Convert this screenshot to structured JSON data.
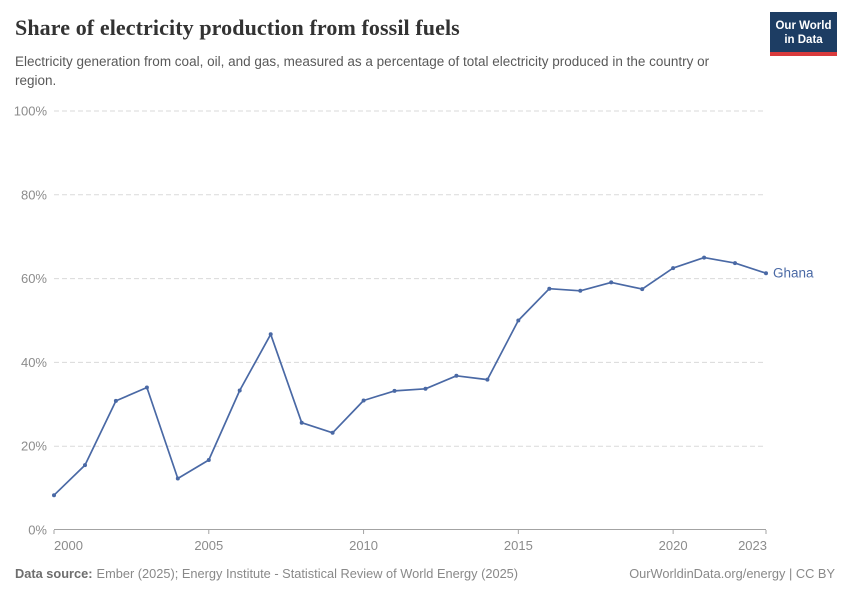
{
  "header": {
    "title": "Share of electricity production from fossil fuels",
    "subtitle": "Electricity generation from coal, oil, and gas, measured as a percentage of total electricity produced in the country or region.",
    "logo": {
      "line1": "Our World",
      "line2": "in Data",
      "bg_color": "#1d3d63",
      "bar_color": "#d93a3c"
    }
  },
  "chart_data": {
    "type": "line",
    "title": "Share of electricity production from fossil fuels",
    "xlabel": "",
    "ylabel": "",
    "xlim": [
      2000,
      2023
    ],
    "ylim": [
      0,
      100
    ],
    "x_ticks": [
      2000,
      2005,
      2010,
      2015,
      2020,
      2023
    ],
    "y_ticks": [
      0,
      20,
      40,
      60,
      80,
      100
    ],
    "y_tick_suffix": "%",
    "grid": "horizontal-dashed",
    "legend_position": "end-of-line-label",
    "series": [
      {
        "name": "Ghana",
        "color": "#4a69a5",
        "x": [
          2000,
          2001,
          2002,
          2003,
          2004,
          2005,
          2006,
          2007,
          2008,
          2009,
          2010,
          2011,
          2012,
          2013,
          2014,
          2015,
          2016,
          2017,
          2018,
          2019,
          2020,
          2021,
          2022,
          2023
        ],
        "values": [
          8.3,
          15.5,
          30.8,
          34.0,
          12.3,
          16.7,
          33.3,
          46.7,
          25.6,
          23.2,
          30.9,
          33.2,
          33.7,
          36.8,
          35.9,
          50.0,
          57.6,
          57.1,
          59.1,
          57.5,
          62.5,
          65.0,
          63.7,
          61.3
        ]
      }
    ]
  },
  "colors": {
    "line": "#4a69a5",
    "gridline": "#dadada",
    "axis": "#a3a3a3",
    "tick_label": "#8c8c8c"
  },
  "footer": {
    "source_label": "Data source:",
    "source_value": "Ember (2025); Energy Institute - Statistical Review of World Energy (2025)",
    "credit": "OurWorldinData.org/energy | CC BY"
  }
}
